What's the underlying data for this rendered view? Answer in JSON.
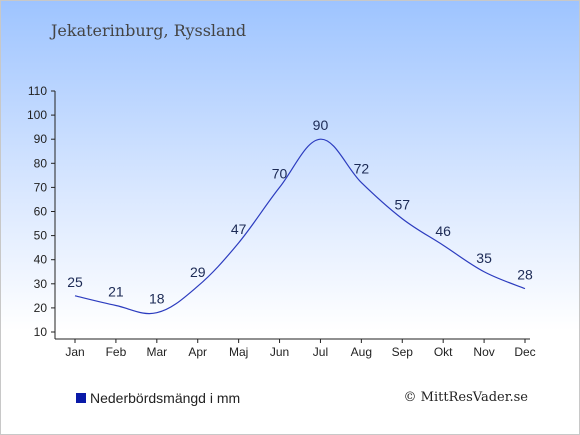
{
  "header": {
    "title": "Jekaterinburg, Ryssland"
  },
  "legend": {
    "label": "Nederbördsmängd i mm",
    "color": "#0a1aa8"
  },
  "footer": {
    "credit": "© MittResVader.se"
  },
  "chart_data": {
    "type": "line",
    "categories": [
      "Jan",
      "Feb",
      "Mar",
      "Apr",
      "Maj",
      "Jun",
      "Jul",
      "Aug",
      "Sep",
      "Okt",
      "Nov",
      "Dec"
    ],
    "series": [
      {
        "name": "Nederbördsmängd i mm",
        "values": [
          25,
          21,
          18,
          29,
          47,
          70,
          90,
          72,
          57,
          46,
          35,
          28
        ],
        "color": "#2c3cbf"
      }
    ],
    "yticks": [
      10,
      20,
      30,
      40,
      50,
      60,
      70,
      80,
      90,
      100,
      110
    ],
    "ylim": [
      10,
      110
    ],
    "grid": false,
    "data_labels": true,
    "legend_position": "bottom-left"
  }
}
